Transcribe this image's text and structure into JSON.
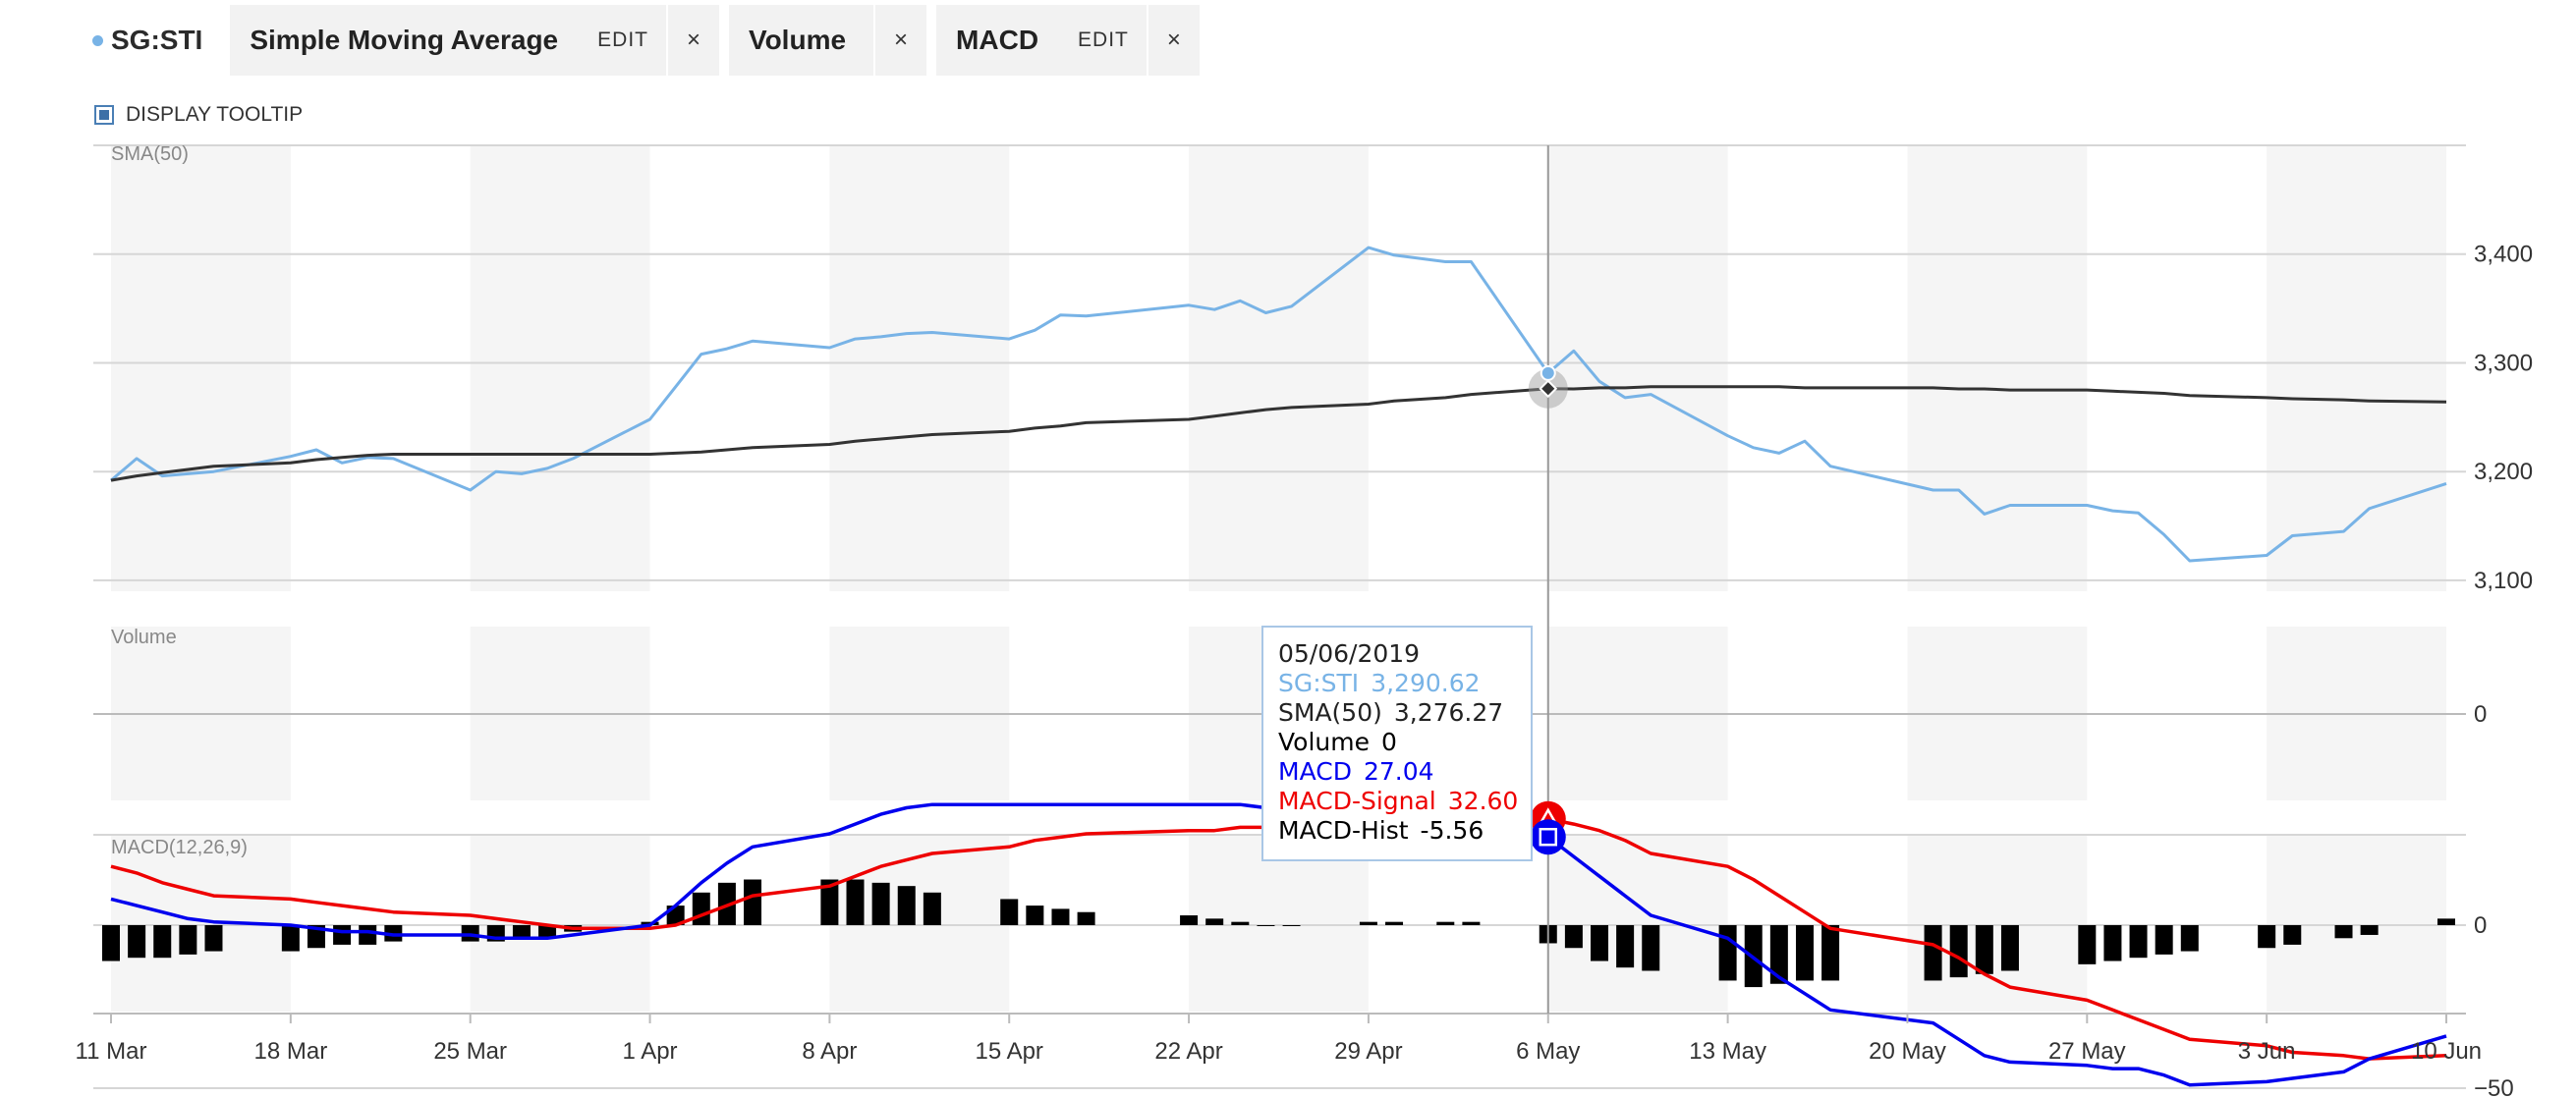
{
  "toolbar": {
    "symbol": "SG:STI",
    "tabs": [
      {
        "name": "Simple Moving Average",
        "edit": "EDIT",
        "close": "×"
      },
      {
        "name": "Volume",
        "close": "×"
      },
      {
        "name": "MACD",
        "edit": "EDIT",
        "close": "×"
      }
    ]
  },
  "tooltip_toggle": {
    "label": "DISPLAY TOOLTIP",
    "checked": true
  },
  "colors": {
    "sti": "#78b3e6",
    "sma": "#333333",
    "macd": "#0000ee",
    "signal": "#ee0000",
    "hist": "#000000",
    "band": "#f5f5f5",
    "grid": "#d6d6d6"
  },
  "tooltip": {
    "date": "05/06/2019",
    "rows": [
      {
        "label": "SG:STI",
        "value": "3,290.62",
        "color": "#78b3e6"
      },
      {
        "label": "SMA(50)",
        "value": "3,276.27",
        "color": "#222222"
      },
      {
        "label": "Volume",
        "value": "0",
        "color": "#000000"
      },
      {
        "label": "MACD",
        "value": "27.04",
        "color": "#0000ee"
      },
      {
        "label": "MACD-Signal",
        "value": "32.60",
        "color": "#ee0000"
      },
      {
        "label": "MACD-Hist",
        "value": "-5.56",
        "color": "#000000"
      }
    ]
  },
  "chart_data": [
    {
      "type": "line",
      "panel_label": "SMA(50)",
      "dates": [
        "2019-03-11",
        "2019-03-12",
        "2019-03-13",
        "2019-03-14",
        "2019-03-15",
        "2019-03-18",
        "2019-03-19",
        "2019-03-20",
        "2019-03-21",
        "2019-03-22",
        "2019-03-25",
        "2019-03-26",
        "2019-03-27",
        "2019-03-28",
        "2019-03-29",
        "2019-04-01",
        "2019-04-02",
        "2019-04-03",
        "2019-04-04",
        "2019-04-05",
        "2019-04-08",
        "2019-04-09",
        "2019-04-10",
        "2019-04-11",
        "2019-04-12",
        "2019-04-15",
        "2019-04-16",
        "2019-04-17",
        "2019-04-18",
        "2019-04-22",
        "2019-04-23",
        "2019-04-24",
        "2019-04-25",
        "2019-04-26",
        "2019-04-29",
        "2019-04-30",
        "2019-05-02",
        "2019-05-03",
        "2019-05-06",
        "2019-05-07",
        "2019-05-08",
        "2019-05-09",
        "2019-05-10",
        "2019-05-13",
        "2019-05-14",
        "2019-05-15",
        "2019-05-16",
        "2019-05-17",
        "2019-05-21",
        "2019-05-22",
        "2019-05-23",
        "2019-05-24",
        "2019-05-27",
        "2019-05-28",
        "2019-05-29",
        "2019-05-30",
        "2019-05-31",
        "2019-06-03",
        "2019-06-04",
        "2019-06-06",
        "2019-06-07",
        "2019-06-10"
      ],
      "series": [
        {
          "name": "SG:STI",
          "color": "#78b3e6",
          "values": [
            3192,
            3212,
            3196,
            3198,
            3200,
            3214,
            3220,
            3208,
            3213,
            3212,
            3183,
            3200,
            3198,
            3203,
            3212,
            3248,
            3278,
            3308,
            3313,
            3320,
            3314,
            3322,
            3324,
            3327,
            3328,
            3322,
            3330,
            3344,
            3343,
            3353,
            3349,
            3357,
            3346,
            3352,
            3406,
            3399,
            3393,
            3393,
            3290.62,
            3311,
            3283,
            3268,
            3271,
            3233,
            3222,
            3217,
            3228,
            3205,
            3183,
            3183,
            3161,
            3169,
            3169,
            3164,
            3162,
            3142,
            3118,
            3123,
            3141,
            3145,
            3166,
            3189
          ]
        },
        {
          "name": "SMA(50)",
          "color": "#333333",
          "values": [
            3192,
            3196,
            3199,
            3202,
            3205,
            3208,
            3211,
            3213,
            3215,
            3216,
            3216,
            3216,
            3216,
            3216,
            3216,
            3216,
            3217,
            3218,
            3220,
            3222,
            3225,
            3228,
            3230,
            3232,
            3234,
            3237,
            3240,
            3242,
            3245,
            3248,
            3251,
            3254,
            3257,
            3259,
            3262,
            3265,
            3268,
            3271,
            3276.27,
            3276,
            3277,
            3277,
            3278,
            3278,
            3278,
            3278,
            3277,
            3277,
            3277,
            3276,
            3276,
            3275,
            3275,
            3274,
            3273,
            3272,
            3270,
            3268,
            3267,
            3266,
            3265,
            3264
          ]
        }
      ],
      "y_ticks": [
        "3,400",
        "3,300",
        "3,200",
        "3,100"
      ],
      "ylim": [
        3090,
        3500
      ]
    },
    {
      "type": "bar",
      "panel_label": "Volume",
      "series": [
        {
          "name": "Volume",
          "values": []
        }
      ],
      "y_ticks": [
        "0"
      ]
    },
    {
      "type": "line",
      "panel_label": "MACD(12,26,9)",
      "series": [
        {
          "name": "MACD",
          "color": "#0000ee",
          "values": [
            8,
            6,
            4,
            2,
            1,
            0,
            -1,
            -2,
            -2,
            -3,
            -3,
            -4,
            -4,
            -4,
            -3,
            0,
            6,
            13,
            19,
            24,
            28,
            31,
            34,
            36,
            37,
            37,
            37,
            37,
            37,
            37,
            37,
            37,
            36,
            36,
            35,
            35,
            34,
            34,
            27.04,
            21,
            15,
            9,
            3,
            -4,
            -10,
            -16,
            -21,
            -26,
            -30,
            -35,
            -40,
            -42,
            -43,
            -44,
            -44,
            -46,
            -49,
            -48,
            -47,
            -45,
            -41,
            -34
          ]
        },
        {
          "name": "MACD-Signal",
          "color": "#ee0000",
          "values": [
            18,
            16,
            13,
            11,
            9,
            8,
            7,
            6,
            5,
            4,
            3,
            2,
            1,
            0,
            -1,
            -1,
            0,
            3,
            6,
            9,
            12,
            15,
            18,
            20,
            22,
            24,
            26,
            27,
            28,
            29,
            29,
            30,
            30,
            31,
            31,
            31,
            32,
            32,
            32.6,
            31,
            29,
            26,
            22,
            18,
            14,
            9,
            4,
            -1,
            -6,
            -10,
            -15,
            -19,
            -23,
            -26,
            -29,
            -32,
            -35,
            -37,
            -39,
            -40,
            -41,
            -40
          ]
        },
        {
          "name": "MACD-Hist",
          "color": "#000000",
          "values": [
            -11,
            -10,
            -10,
            -9,
            -8,
            -8,
            -7,
            -6,
            -6,
            -5,
            -5,
            -5,
            -4,
            -4,
            -2,
            1,
            6,
            10,
            13,
            14,
            14,
            14,
            13,
            12,
            10,
            8,
            6,
            5,
            4,
            3,
            2,
            1,
            0,
            0,
            1,
            1,
            1,
            1,
            -5.56,
            -7,
            -11,
            -13,
            -14,
            -17,
            -19,
            -18,
            -17,
            -17,
            -17,
            -16,
            -15,
            -14,
            -12,
            -11,
            -10,
            -9,
            -8,
            -7,
            -6,
            -4,
            -3,
            2
          ]
        }
      ],
      "y_ticks": [
        "0",
        "−50"
      ],
      "ylim": [
        -60,
        55
      ]
    }
  ],
  "x_axis": {
    "labels": [
      {
        "label": "11 Mar",
        "date": "2019-03-11"
      },
      {
        "label": "18 Mar",
        "date": "2019-03-18"
      },
      {
        "label": "25 Mar",
        "date": "2019-03-25"
      },
      {
        "label": "1 Apr",
        "date": "2019-04-01"
      },
      {
        "label": "8 Apr",
        "date": "2019-04-08"
      },
      {
        "label": "15 Apr",
        "date": "2019-04-15"
      },
      {
        "label": "22 Apr",
        "date": "2019-04-22"
      },
      {
        "label": "29 Apr",
        "date": "2019-04-29"
      },
      {
        "label": "6 May",
        "date": "2019-05-06"
      },
      {
        "label": "13 May",
        "date": "2019-05-13"
      },
      {
        "label": "20 May",
        "date": "2019-05-20"
      },
      {
        "label": "27 May",
        "date": "2019-05-27"
      },
      {
        "label": "3 Jun",
        "date": "2019-06-03"
      },
      {
        "label": "10 Jun",
        "date": "2019-06-10"
      }
    ],
    "crosshair_date": "2019-05-06"
  }
}
